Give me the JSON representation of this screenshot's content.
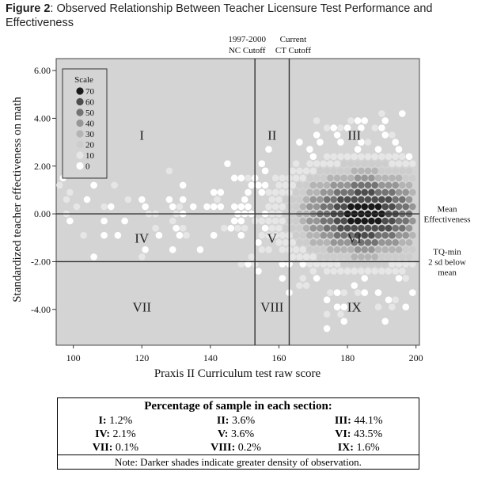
{
  "figure": {
    "label": "Figure 2",
    "caption": ": Observed Relationship Between Teacher Licensure Test Performance and Effectiveness"
  },
  "chart_data": {
    "type": "heatmap",
    "xlabel": "Praxis II Curriculum test raw score",
    "ylabel": "Standardized teacher effectiveness on math",
    "xlim": [
      95,
      201
    ],
    "ylim": [
      -5.5,
      6.5
    ],
    "xticks": [
      "100",
      "120",
      "140",
      "160",
      "180",
      "200"
    ],
    "yticks": [
      "6.00",
      "4.00",
      "2.00",
      "0.00",
      "-2.00",
      "-4.00"
    ],
    "grid": false,
    "legend": {
      "title": "Scale",
      "placement": "top-left",
      "levels": [
        "70",
        "60",
        "50",
        "40",
        "30",
        "20",
        "10",
        "0"
      ],
      "colors": [
        "#1a1a1a",
        "#4d4d4d",
        "#737373",
        "#969696",
        "#b4b4b4",
        "#cdcdcd",
        "#e6e6e6",
        "#ffffff"
      ]
    },
    "background": "#d4d4d4",
    "vertical_lines": [
      {
        "x": 153,
        "label_lines": [
          "1997-2000",
          "NC Cutoff"
        ]
      },
      {
        "x": 163,
        "label_lines": [
          "Current",
          "CT Cutoff"
        ]
      }
    ],
    "horizontal_lines": [
      {
        "y": 0,
        "label_lines": [
          "Mean",
          "Effectiveness"
        ]
      },
      {
        "y": -2,
        "label_lines": [
          "TQ-min",
          "2 sd below",
          "mean"
        ]
      }
    ],
    "regions": [
      {
        "label": "I",
        "x": 120,
        "y": 3.3
      },
      {
        "label": "II",
        "x": 158,
        "y": 3.3
      },
      {
        "label": "III",
        "x": 182,
        "y": 3.3
      },
      {
        "label": "IV",
        "x": 120,
        "y": -1.0
      },
      {
        "label": "V",
        "x": 158,
        "y": -1.0
      },
      {
        "label": "VI",
        "x": 182,
        "y": -1.0
      },
      {
        "label": "VII",
        "x": 120,
        "y": -3.9
      },
      {
        "label": "VIII",
        "x": 158,
        "y": -3.9
      },
      {
        "label": "IX",
        "x": 182,
        "y": -3.9
      }
    ]
  },
  "table": {
    "title": "Percentage of sample in each section:",
    "rows": [
      [
        {
          "label": "I:",
          "value": "1.2%"
        },
        {
          "label": "II:",
          "value": "3.6%"
        },
        {
          "label": "III:",
          "value": "44.1%"
        }
      ],
      [
        {
          "label": "IV:",
          "value": "2.1%"
        },
        {
          "label": "V:",
          "value": "3.6%"
        },
        {
          "label": "VI:",
          "value": "43.5%"
        }
      ],
      [
        {
          "label": "VII:",
          "value": "0.1%"
        },
        {
          "label": "VIII:",
          "value": "0.2%"
        },
        {
          "label": "IX:",
          "value": "1.6%"
        }
      ]
    ],
    "note": "Note: Darker shades indicate greater density of observation."
  }
}
